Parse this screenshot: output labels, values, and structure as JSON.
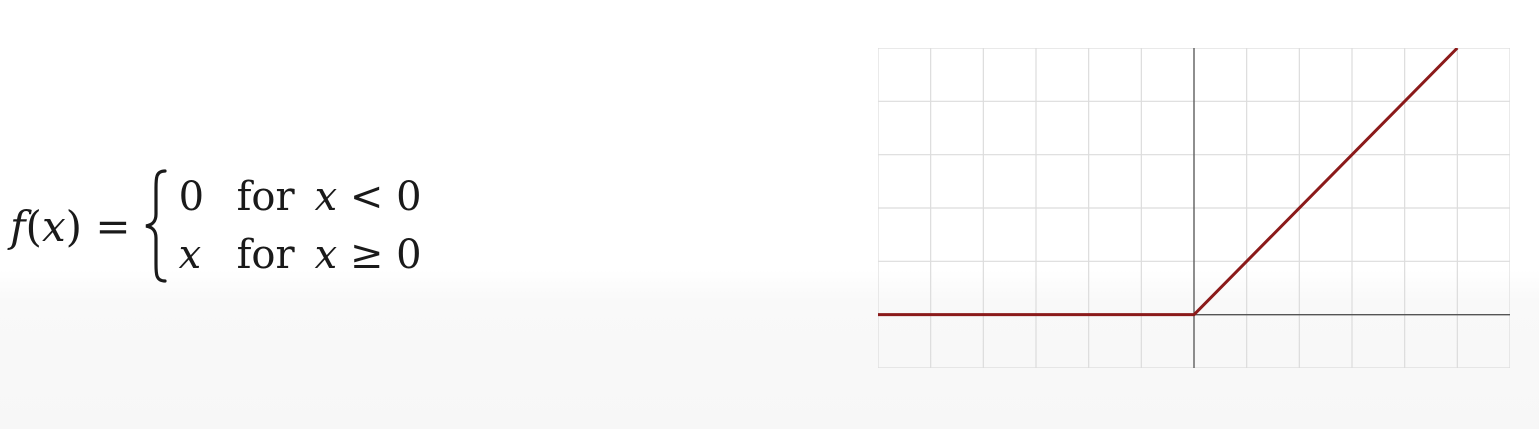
{
  "formula": {
    "lhs_fn": "f",
    "lhs_arg": "x",
    "equals": "=",
    "cases": [
      {
        "value": "0",
        "value_italic": false,
        "cond_word": "for",
        "cond_var": "x",
        "cond_op": "<",
        "cond_rhs": "0"
      },
      {
        "value": "x",
        "value_italic": true,
        "cond_word": "for",
        "cond_var": "x",
        "cond_op": "≥",
        "cond_rhs": "0"
      }
    ]
  },
  "chart_data": {
    "type": "line",
    "description_of_axes": "no tick labels shown",
    "grid": true,
    "xlim": [
      -6,
      6
    ],
    "ylim": [
      -1,
      5
    ],
    "series": [
      {
        "x": [
          -6,
          0,
          5
        ],
        "y": [
          0,
          0,
          5
        ],
        "color": "#8b1a1a"
      }
    ],
    "colors": {
      "grid": "#dcdcdc",
      "axis": "#555555",
      "line": "#8b1a1a"
    }
  }
}
